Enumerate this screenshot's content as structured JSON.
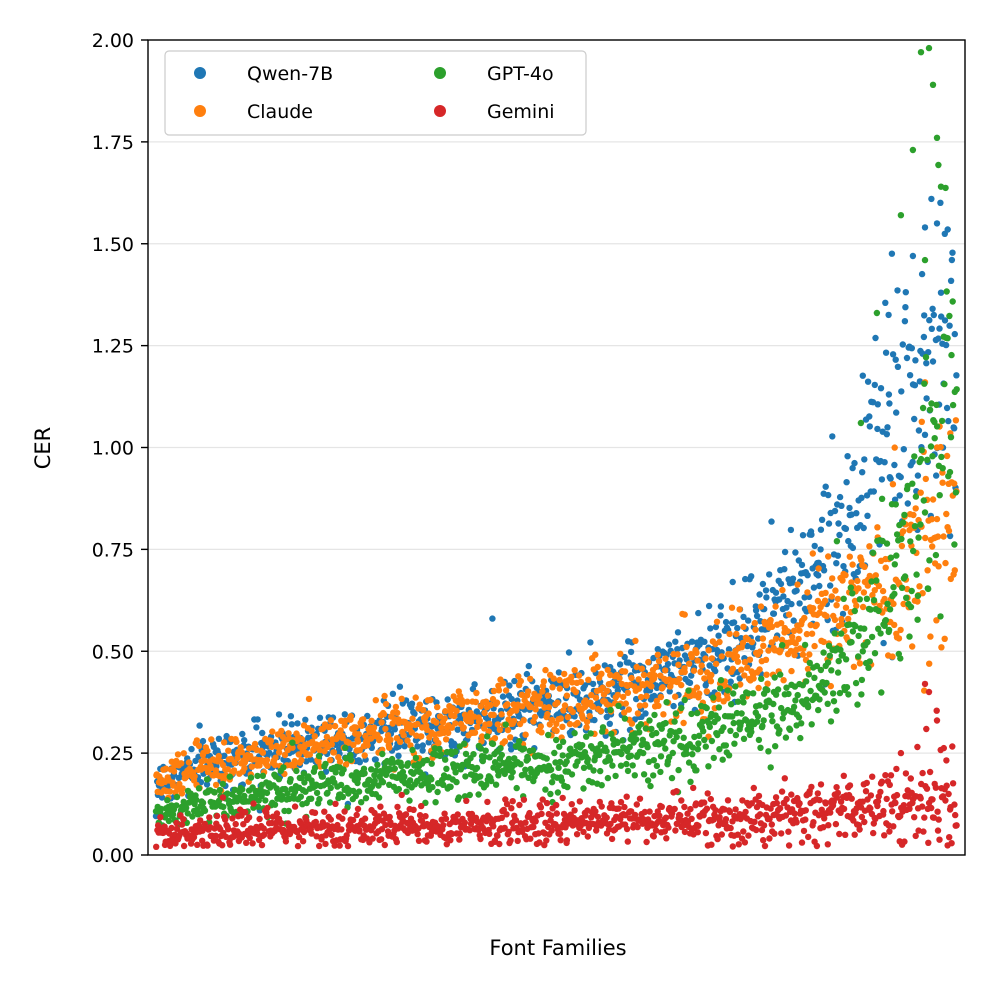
{
  "chart_data": {
    "type": "scatter",
    "title": "",
    "xlabel": "Font Families",
    "ylabel": "CER",
    "ylim": [
      0,
      2
    ],
    "y_ticks": [
      {
        "value": 0.0,
        "label": "0.00"
      },
      {
        "value": 0.25,
        "label": "0.25"
      },
      {
        "value": 0.5,
        "label": "0.50"
      },
      {
        "value": 0.75,
        "label": "0.75"
      },
      {
        "value": 1.0,
        "label": "1.00"
      },
      {
        "value": 1.25,
        "label": "1.25"
      },
      {
        "value": 1.5,
        "label": "1.50"
      },
      {
        "value": 1.75,
        "label": "1.75"
      },
      {
        "value": 2.0,
        "label": "2.00"
      }
    ],
    "grid": "horizontal",
    "legend_position": "top-left",
    "points_per_series_approx": 1000,
    "series": [
      {
        "name": "Qwen-7B",
        "color": "#1f77b4",
        "x": [
          0,
          50,
          100,
          150,
          200,
          250,
          300,
          350,
          400,
          450,
          500,
          550,
          600,
          650,
          700,
          750,
          800,
          850,
          900,
          925,
          950,
          975,
          1000
        ],
        "values": [
          0.17,
          0.22,
          0.24,
          0.26,
          0.28,
          0.29,
          0.3,
          0.31,
          0.33,
          0.35,
          0.37,
          0.39,
          0.42,
          0.46,
          0.5,
          0.56,
          0.66,
          0.78,
          0.95,
          1.05,
          1.1,
          1.2,
          1.25
        ],
        "outliers": [
          [
            420,
            0.58
          ],
          [
            720,
            0.67
          ],
          [
            770,
            0.65
          ],
          [
            915,
            1.13
          ],
          [
            935,
            1.31
          ],
          [
            945,
            1.47
          ],
          [
            960,
            1.54
          ],
          [
            968,
            1.61
          ],
          [
            975,
            1.55
          ],
          [
            980,
            1.38
          ]
        ]
      },
      {
        "name": "Claude",
        "color": "#ff7f0e",
        "x": [
          0,
          50,
          100,
          150,
          200,
          250,
          300,
          350,
          400,
          450,
          500,
          550,
          600,
          650,
          700,
          750,
          800,
          850,
          900,
          925,
          950,
          975,
          1000
        ],
        "values": [
          0.17,
          0.21,
          0.23,
          0.25,
          0.27,
          0.29,
          0.31,
          0.33,
          0.34,
          0.36,
          0.37,
          0.39,
          0.41,
          0.43,
          0.46,
          0.49,
          0.53,
          0.59,
          0.65,
          0.7,
          0.75,
          0.8,
          0.85
        ],
        "outliers": [
          [
            660,
            0.59
          ],
          [
            820,
            0.74
          ],
          [
            920,
            0.91
          ],
          [
            960,
            1.16
          ],
          [
            975,
            1.0
          ]
        ]
      },
      {
        "name": "GPT-4o",
        "color": "#2ca02c",
        "x": [
          0,
          50,
          100,
          150,
          200,
          250,
          300,
          350,
          400,
          450,
          500,
          550,
          600,
          650,
          700,
          750,
          800,
          850,
          900,
          925,
          950,
          975,
          1000
        ],
        "values": [
          0.1,
          0.12,
          0.14,
          0.16,
          0.17,
          0.18,
          0.19,
          0.2,
          0.21,
          0.22,
          0.23,
          0.24,
          0.26,
          0.28,
          0.31,
          0.34,
          0.38,
          0.45,
          0.6,
          0.72,
          0.85,
          1.0,
          1.15
        ],
        "outliers": [
          [
            850,
            0.77
          ],
          [
            880,
            1.06
          ],
          [
            900,
            1.33
          ],
          [
            930,
            1.57
          ],
          [
            945,
            1.73
          ],
          [
            955,
            1.97
          ],
          [
            965,
            1.98
          ],
          [
            970,
            1.89
          ],
          [
            975,
            1.76
          ],
          [
            980,
            1.64
          ],
          [
            960,
            1.46
          ]
        ]
      },
      {
        "name": "Gemini",
        "color": "#d62728",
        "x": [
          0,
          50,
          100,
          150,
          200,
          250,
          300,
          350,
          400,
          450,
          500,
          550,
          600,
          650,
          700,
          750,
          800,
          850,
          900,
          925,
          950,
          975,
          1000
        ],
        "values": [
          0.05,
          0.055,
          0.06,
          0.062,
          0.065,
          0.067,
          0.07,
          0.072,
          0.075,
          0.078,
          0.08,
          0.083,
          0.085,
          0.088,
          0.09,
          0.095,
          0.1,
          0.11,
          0.12,
          0.13,
          0.14,
          0.15,
          0.16
        ],
        "outliers": [
          [
            930,
            0.25
          ],
          [
            960,
            0.42
          ],
          [
            965,
            0.4
          ],
          [
            975,
            0.33
          ]
        ]
      }
    ]
  }
}
